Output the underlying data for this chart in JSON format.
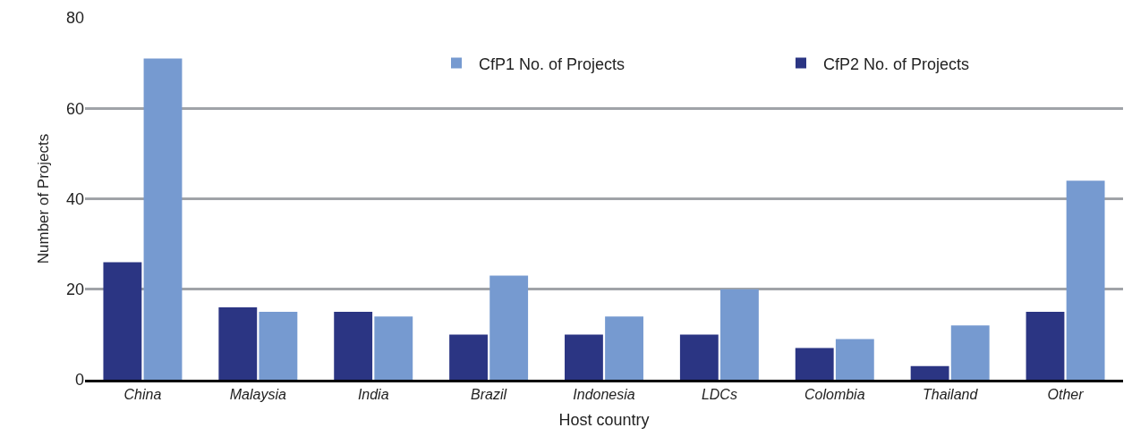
{
  "chart_data": {
    "type": "bar",
    "xlabel": "Host country",
    "ylabel": "Number of Projects",
    "categories": [
      "China",
      "Malaysia",
      "India",
      "Brazil",
      "Indonesia",
      "LDCs",
      "Colombia",
      "Thailand",
      "Other"
    ],
    "series": [
      {
        "name": "CfP2 No. of Projects",
        "color": "#2b3583",
        "values": [
          26,
          16,
          15,
          10,
          10,
          10,
          7,
          3,
          15
        ]
      },
      {
        "name": "CfP1 No. of Projects",
        "color": "#769ad0",
        "values": [
          71,
          15,
          14,
          23,
          14,
          20,
          9,
          12,
          44
        ]
      }
    ],
    "ylim": [
      0,
      80
    ],
    "yticks": [
      0,
      20,
      40,
      60,
      80
    ],
    "grid": "y",
    "legend": "top right"
  }
}
